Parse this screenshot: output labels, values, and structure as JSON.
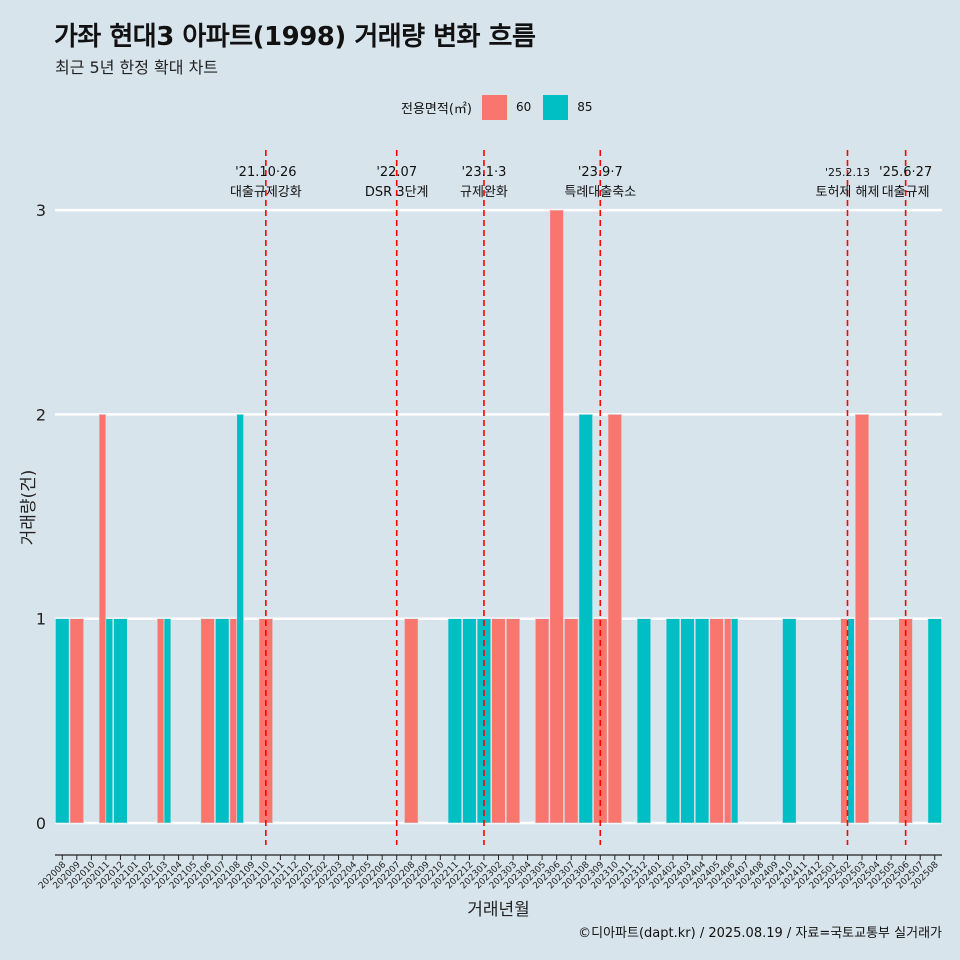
{
  "header": {
    "title": "가좌 현대3 아파트(1998) 거래량 변화 흐름",
    "subtitle": "최근 5년 한정 확대 차트"
  },
  "legend": {
    "title": "전용면적(㎡)",
    "items": [
      {
        "label": "60",
        "color": "#f8766d"
      },
      {
        "label": "85",
        "color": "#00bfc4"
      }
    ]
  },
  "caption": "©디아파트(dapt.kr) / 2025.08.19 / 자료=국토교통부 실거래가",
  "chart_data": {
    "type": "bar",
    "xlabel": "거래년월",
    "ylabel": "거래량(건)",
    "ylim": [
      0,
      3
    ],
    "yticks": [
      0,
      1,
      2,
      3
    ],
    "grid": true,
    "legend_position": "top",
    "categories": [
      "202008",
      "202009",
      "202010",
      "202011",
      "202012",
      "202101",
      "202102",
      "202103",
      "202104",
      "202105",
      "202106",
      "202107",
      "202108",
      "202109",
      "202110",
      "202111",
      "202112",
      "202201",
      "202202",
      "202203",
      "202204",
      "202205",
      "202206",
      "202207",
      "202208",
      "202209",
      "202210",
      "202211",
      "202212",
      "202301",
      "202302",
      "202303",
      "202304",
      "202305",
      "202306",
      "202307",
      "202308",
      "202309",
      "202310",
      "202311",
      "202312",
      "202401",
      "202402",
      "202403",
      "202404",
      "202405",
      "202406",
      "202407",
      "202408",
      "202409",
      "202410",
      "202411",
      "202412",
      "202501",
      "202502",
      "202503",
      "202504",
      "202505",
      "202506",
      "202507",
      "202508"
    ],
    "series": [
      {
        "name": "60",
        "color": "#f8766d",
        "values": [
          0,
          1,
          0,
          2,
          0,
          0,
          0,
          1,
          0,
          0,
          1,
          0,
          1,
          0,
          1,
          0,
          0,
          0,
          0,
          0,
          0,
          0,
          0,
          0,
          1,
          0,
          0,
          0,
          0,
          0,
          1,
          1,
          0,
          1,
          3,
          1,
          0,
          1,
          2,
          0,
          0,
          0,
          0,
          0,
          0,
          1,
          1,
          0,
          0,
          0,
          0,
          0,
          0,
          0,
          1,
          2,
          0,
          0,
          1,
          0,
          0
        ]
      },
      {
        "name": "85",
        "color": "#00bfc4",
        "values": [
          1,
          0,
          0,
          1,
          1,
          0,
          0,
          1,
          0,
          0,
          0,
          1,
          2,
          0,
          0,
          0,
          0,
          0,
          0,
          0,
          0,
          0,
          0,
          0,
          0,
          0,
          0,
          1,
          1,
          1,
          0,
          0,
          0,
          0,
          0,
          0,
          2,
          0,
          0,
          0,
          1,
          0,
          1,
          1,
          1,
          0,
          1,
          0,
          0,
          0,
          1,
          0,
          0,
          0,
          1,
          0,
          0,
          0,
          0,
          0,
          1
        ]
      }
    ],
    "annotations": [
      {
        "month": "202110",
        "date": "'21.10·26",
        "label": "대출규제강화"
      },
      {
        "month": "202207",
        "date": "'22.07",
        "label": "DSR 3단계"
      },
      {
        "month": "202301",
        "date": "'23.1·3",
        "label": "규제완화"
      },
      {
        "month": "202309",
        "date": "'23.9·7",
        "label": "특례대출축소"
      },
      {
        "month": "202502",
        "date": "'25.2.13",
        "label": "토허제 해제"
      },
      {
        "month": "202506",
        "date": "'25.6·27",
        "label": "대출규제"
      }
    ],
    "annotation_line_color": "#ff0000"
  }
}
